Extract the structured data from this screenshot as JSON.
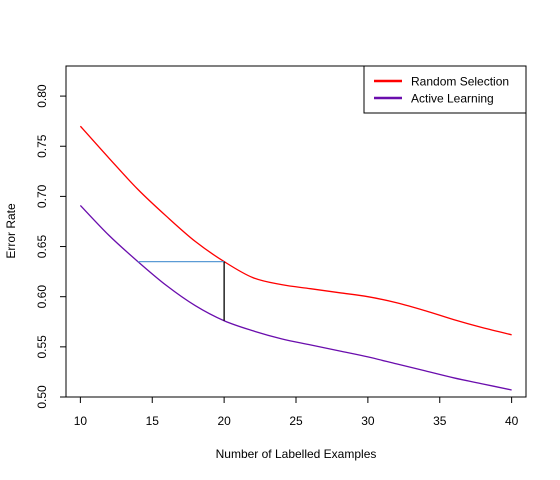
{
  "chart_data": {
    "type": "line",
    "title": "",
    "xlabel": "Number of Labelled Examples",
    "ylabel": "Error Rate",
    "xlim": [
      9,
      41
    ],
    "ylim": [
      0.5,
      0.83
    ],
    "x_ticks": [
      10,
      15,
      20,
      25,
      30,
      35,
      40
    ],
    "x_tick_labels": [
      "10",
      "15",
      "20",
      "25",
      "30",
      "35",
      "40"
    ],
    "y_ticks": [
      0.5,
      0.55,
      0.6,
      0.65,
      0.7,
      0.75,
      0.8
    ],
    "y_tick_labels": [
      "0.50",
      "0.55",
      "0.60",
      "0.65",
      "0.70",
      "0.75",
      "0.80"
    ],
    "legend_position": "top-right",
    "series": [
      {
        "name": "Random Selection",
        "color": "#ff0000",
        "x": [
          10,
          12,
          14,
          16,
          18,
          20,
          22,
          24,
          26,
          28,
          30,
          32,
          34,
          36,
          38,
          40
        ],
        "values": [
          0.77,
          0.738,
          0.707,
          0.68,
          0.655,
          0.635,
          0.619,
          0.612,
          0.608,
          0.604,
          0.6,
          0.594,
          0.586,
          0.577,
          0.569,
          0.562
        ]
      },
      {
        "name": "Active Learning",
        "color": "#6a0dad",
        "x": [
          10,
          12,
          14,
          16,
          18,
          20,
          22,
          24,
          26,
          28,
          30,
          32,
          34,
          36,
          38,
          40
        ],
        "values": [
          0.691,
          0.661,
          0.635,
          0.611,
          0.591,
          0.576,
          0.566,
          0.558,
          0.552,
          0.546,
          0.54,
          0.533,
          0.526,
          0.519,
          0.513,
          0.507
        ]
      }
    ],
    "annotations": [
      {
        "type": "horizontal-segment",
        "color": "#5b9bd5",
        "x": [
          14,
          20
        ],
        "y": 0.635
      },
      {
        "type": "vertical-segment",
        "color": "#000000",
        "x": 20,
        "y": [
          0.576,
          0.635
        ]
      }
    ]
  }
}
